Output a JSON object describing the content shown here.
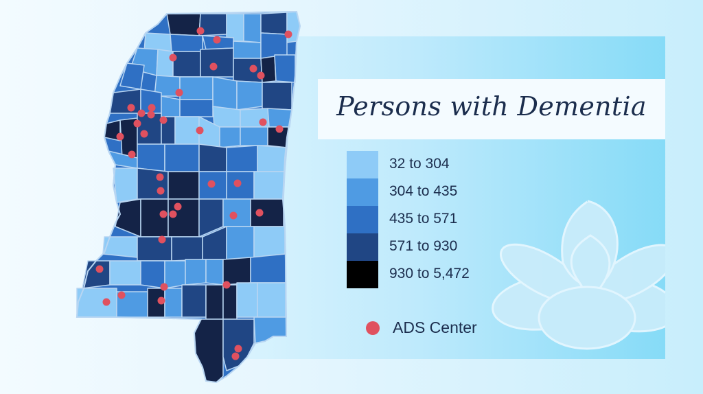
{
  "title": "Persons with Dementia",
  "legend": [
    {
      "label": "32 to 304",
      "color": "#8ecbf7"
    },
    {
      "label": "304 to 435",
      "color": "#4f9be3"
    },
    {
      "label": "435 to 571",
      "color": "#2f70c4"
    },
    {
      "label": "571 to 930",
      "color": "#204684"
    },
    {
      "label": "930 to 5,472",
      "color": "#000000"
    }
  ],
  "ads_key": {
    "label": "ADS Center",
    "color": "#e0515f"
  },
  "colors": {
    "border": "#b9d6f2",
    "darkest_fill": "#142347",
    "flower": "#bfe7fa"
  }
}
